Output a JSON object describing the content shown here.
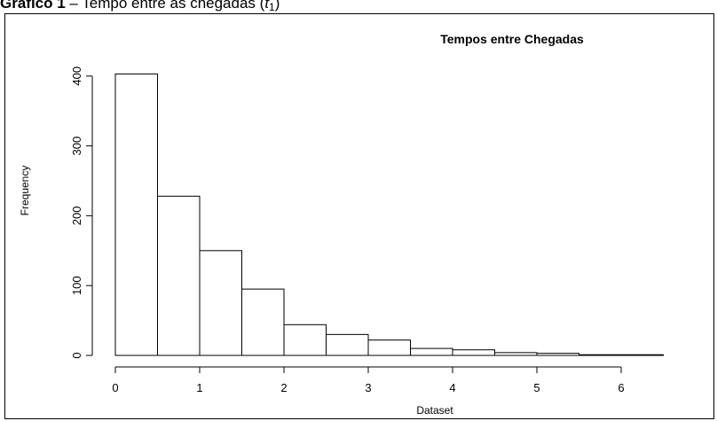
{
  "caption": {
    "bold": "Gráfico 1",
    "rest": " – Tempo entre as chegadas (",
    "symbol": "t",
    "subscript": "1",
    "close": ")"
  },
  "chart_data": {
    "type": "bar",
    "title": "Tempos entre Chegadas",
    "xlabel": "Dataset",
    "ylabel": "Frequency",
    "bin_edges": [
      0,
      0.5,
      1,
      1.5,
      2,
      2.5,
      3,
      3.5,
      4,
      4.5,
      5,
      5.5,
      6,
      6.5
    ],
    "values": [
      403,
      228,
      150,
      95,
      44,
      30,
      22,
      10,
      8,
      4,
      3,
      1,
      1
    ],
    "xlim": [
      0,
      6.5
    ],
    "ylim": [
      0,
      400
    ],
    "xticks": [
      0,
      1,
      2,
      3,
      4,
      5,
      6
    ],
    "yticks": [
      0,
      100,
      200,
      300,
      400
    ],
    "grid": false,
    "bar_fill": "#ffffff",
    "bar_stroke": "#000000"
  }
}
